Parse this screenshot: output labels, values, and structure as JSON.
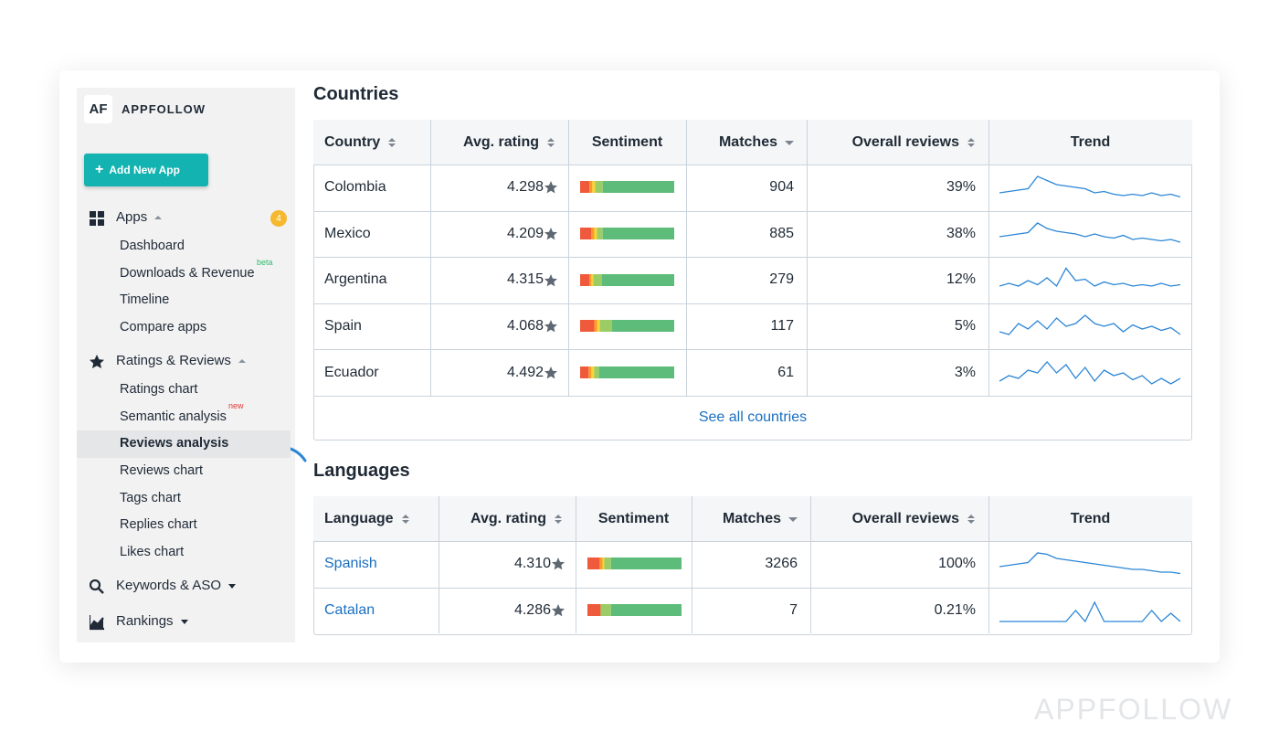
{
  "sidebar": {
    "logo": "AF",
    "brand": "APPFOLLOW",
    "add_button": "Add New App",
    "sections": [
      {
        "label": "Apps",
        "badge": "4",
        "expanded": true,
        "items": [
          {
            "label": "Dashboard"
          },
          {
            "label": "Downloads & Revenue",
            "tag": "beta"
          },
          {
            "label": "Timeline"
          },
          {
            "label": "Compare apps"
          }
        ]
      },
      {
        "label": "Ratings & Reviews",
        "expanded": true,
        "items": [
          {
            "label": "Ratings chart"
          },
          {
            "label": "Semantic analysis",
            "tag": "new"
          },
          {
            "label": "Reviews analysis",
            "active": true
          },
          {
            "label": "Reviews chart"
          },
          {
            "label": "Tags chart"
          },
          {
            "label": "Replies chart"
          },
          {
            "label": "Likes chart"
          }
        ]
      },
      {
        "label": "Keywords & ASO",
        "expanded": false,
        "items": []
      },
      {
        "label": "Rankings",
        "expanded": false,
        "items": []
      }
    ]
  },
  "sentiment_colors": [
    "#f05a3c",
    "#f99a2b",
    "#f7d43c",
    "#9ccc65",
    "#5ebc7a"
  ],
  "trend_color": "#2b86d6",
  "countries": {
    "title": "Countries",
    "footer_link": "See all countries",
    "columns": [
      {
        "label": "Country",
        "sort": "both"
      },
      {
        "label": "Avg. rating",
        "sort": "both"
      },
      {
        "label": "Sentiment"
      },
      {
        "label": "Matches",
        "sort": "desc"
      },
      {
        "label": "Overall reviews",
        "sort": "both"
      },
      {
        "label": "Trend"
      }
    ],
    "rows": [
      {
        "name": "Colombia",
        "rating": "4.298",
        "sentiment": [
          10,
          3,
          3,
          8,
          76
        ],
        "matches": 904,
        "overall": "39%",
        "trend": [
          0.3,
          0.35,
          0.4,
          0.45,
          0.9,
          0.75,
          0.6,
          0.55,
          0.5,
          0.45,
          0.3,
          0.35,
          0.25,
          0.2,
          0.25,
          0.2,
          0.3,
          0.2,
          0.25,
          0.15
        ]
      },
      {
        "name": "Mexico",
        "rating": "4.209",
        "sentiment": [
          12,
          3,
          3,
          6,
          76
        ],
        "matches": 885,
        "overall": "38%",
        "trend": [
          0.4,
          0.45,
          0.5,
          0.55,
          0.9,
          0.7,
          0.6,
          0.55,
          0.5,
          0.4,
          0.5,
          0.4,
          0.35,
          0.45,
          0.3,
          0.35,
          0.3,
          0.25,
          0.3,
          0.2
        ]
      },
      {
        "name": "Argentina",
        "rating": "4.315",
        "sentiment": [
          10,
          2,
          2,
          9,
          77
        ],
        "matches": 279,
        "overall": "12%",
        "trend": [
          0.3,
          0.4,
          0.3,
          0.5,
          0.35,
          0.6,
          0.3,
          0.95,
          0.5,
          0.55,
          0.3,
          0.45,
          0.35,
          0.4,
          0.3,
          0.35,
          0.3,
          0.4,
          0.3,
          0.35
        ]
      },
      {
        "name": "Spain",
        "rating": "4.068",
        "sentiment": [
          15,
          3,
          3,
          13,
          66
        ],
        "matches": 117,
        "overall": "5%",
        "trend": [
          0.3,
          0.2,
          0.6,
          0.4,
          0.7,
          0.4,
          0.8,
          0.5,
          0.6,
          0.9,
          0.6,
          0.5,
          0.6,
          0.3,
          0.55,
          0.4,
          0.5,
          0.35,
          0.45,
          0.2
        ]
      },
      {
        "name": "Ecuador",
        "rating": "4.492",
        "sentiment": [
          9,
          3,
          3,
          5,
          80
        ],
        "matches": 61,
        "overall": "3%",
        "trend": [
          0.2,
          0.4,
          0.3,
          0.6,
          0.5,
          0.9,
          0.5,
          0.8,
          0.3,
          0.7,
          0.2,
          0.6,
          0.4,
          0.5,
          0.25,
          0.4,
          0.1,
          0.3,
          0.1,
          0.3
        ]
      }
    ]
  },
  "languages": {
    "title": "Languages",
    "link_names": true,
    "columns": [
      {
        "label": "Language",
        "sort": "both"
      },
      {
        "label": "Avg. rating",
        "sort": "both"
      },
      {
        "label": "Sentiment"
      },
      {
        "label": "Matches",
        "sort": "desc"
      },
      {
        "label": "Overall reviews",
        "sort": "both"
      },
      {
        "label": "Trend"
      }
    ],
    "rows": [
      {
        "name": "Spanish",
        "rating": "4.310",
        "sentiment": [
          13,
          3,
          2,
          7,
          75
        ],
        "matches": 3266,
        "overall": "100%",
        "trend": [
          0.4,
          0.45,
          0.5,
          0.55,
          0.9,
          0.85,
          0.7,
          0.65,
          0.6,
          0.55,
          0.5,
          0.45,
          0.4,
          0.35,
          0.3,
          0.3,
          0.25,
          0.2,
          0.2,
          0.15
        ]
      },
      {
        "name": "Catalan",
        "rating": "4.286",
        "sentiment": [
          14,
          0,
          0,
          11,
          75
        ],
        "matches": 7,
        "overall": "0.21%",
        "trend": [
          0.1,
          0.1,
          0.1,
          0.1,
          0.1,
          0.1,
          0.1,
          0.1,
          0.5,
          0.1,
          0.8,
          0.1,
          0.1,
          0.1,
          0.1,
          0.1,
          0.5,
          0.1,
          0.4,
          0.1
        ]
      }
    ]
  },
  "watermark": "APPFOLLOW"
}
